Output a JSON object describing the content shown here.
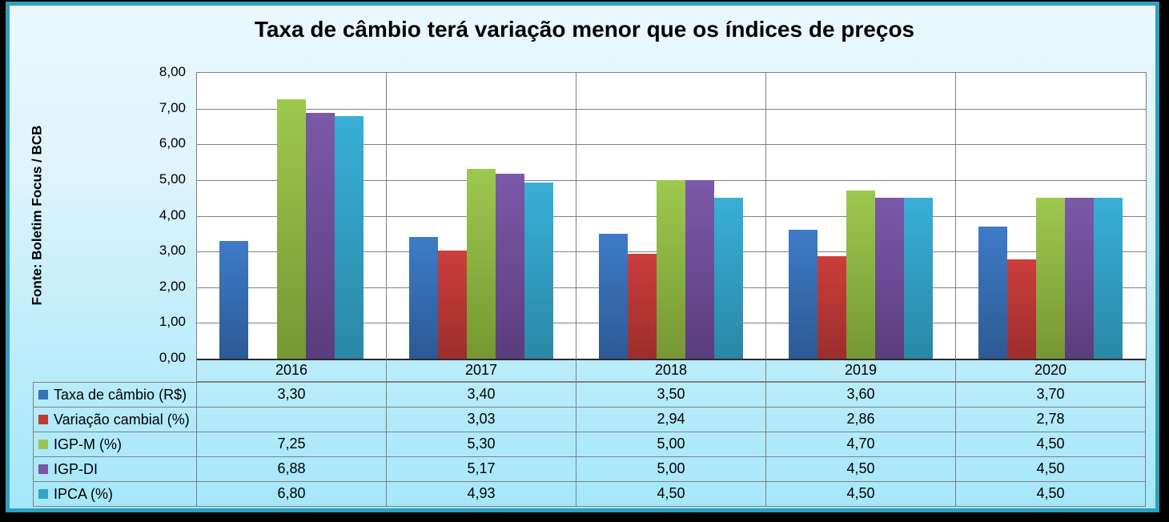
{
  "window": {
    "frame_color": "#000000",
    "border_color": "#2EA0BF",
    "background_top": "#EAF8FE",
    "background_bottom": "#A5E7FA"
  },
  "title": "Taxa de câmbio terá variação menor que os índices de preços",
  "source_label": "Fonte: Boletim Focus / BCB",
  "chart_data": {
    "type": "bar",
    "title": "Taxa de câmbio terá variação menor que os índices de preços",
    "categories": [
      "2016",
      "2017",
      "2018",
      "2019",
      "2020"
    ],
    "series": [
      {
        "name": "Taxa de câmbio (R$)",
        "values": [
          3.3,
          3.4,
          3.5,
          3.6,
          3.7
        ],
        "display": [
          "3,30",
          "3,40",
          "3,50",
          "3,60",
          "3,70"
        ],
        "color_top": "#3E7BC8",
        "color_bottom": "#2C5A94",
        "swatch": "#3A6FB5"
      },
      {
        "name": "Variação cambial (%)",
        "values": [
          null,
          3.03,
          2.94,
          2.86,
          2.78
        ],
        "display": [
          "",
          "3,03",
          "2,94",
          "2,86",
          "2,78"
        ],
        "color_top": "#CB3E3C",
        "color_bottom": "#9C2E2B",
        "swatch": "#BE3B38"
      },
      {
        "name": "IGP-M (%)",
        "values": [
          7.25,
          5.3,
          5.0,
          4.7,
          4.5
        ],
        "display": [
          "7,25",
          "5,30",
          "5,00",
          "4,70",
          "4,50"
        ],
        "color_top": "#9DC94F",
        "color_bottom": "#769733",
        "swatch": "#9CC452"
      },
      {
        "name": "IGP-DI",
        "values": [
          6.88,
          5.17,
          5.0,
          4.5,
          4.5
        ],
        "display": [
          "6,88",
          "5,17",
          "5,00",
          "4,50",
          "4,50"
        ],
        "color_top": "#7C59A9",
        "color_bottom": "#5A3D7D",
        "swatch": "#7A57A3"
      },
      {
        "name": "IPCA (%)",
        "values": [
          6.8,
          4.93,
          4.5,
          4.5,
          4.5
        ],
        "display": [
          "6,80",
          "4,93",
          "4,50",
          "4,50",
          "4,50"
        ],
        "color_top": "#38AFD7",
        "color_bottom": "#2A88A6",
        "swatch": "#35A3C2"
      }
    ],
    "ylim": [
      0,
      8
    ],
    "ytick_step": 1,
    "ytick_labels": [
      "0,00",
      "1,00",
      "2,00",
      "3,00",
      "4,00",
      "5,00",
      "6,00",
      "7,00",
      "8,00"
    ],
    "grid": true,
    "plot_bg": "#FFFFFF",
    "gridline_color": "#808080",
    "legend_position": "data-table-left-column"
  }
}
